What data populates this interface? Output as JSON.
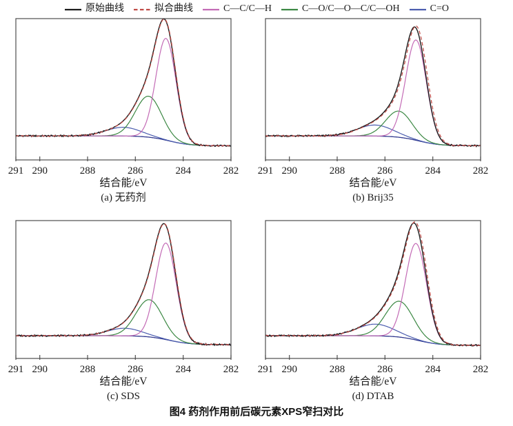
{
  "figure": {
    "caption": "图4 药剂作用前后碳元素XPS窄扫对比"
  },
  "colors": {
    "original": "#1b1b1b",
    "fit": "#c04a45",
    "c_c_h": "#c36ab5",
    "c_o_family": "#3a8742",
    "c_double_o": "#4a5cae",
    "background_line": "#31398f",
    "frame": "#4d4d4d",
    "text": "#1a1a1a"
  },
  "legend": {
    "items": [
      {
        "label": "原始曲线",
        "color_key": "original",
        "dash": "solid"
      },
      {
        "label": "拟合曲线",
        "color_key": "fit",
        "dash": "dashed"
      },
      {
        "label": "C—C/C—H",
        "color_key": "c_c_h",
        "dash": "solid"
      },
      {
        "label": "C—O/C—O—C/C—OH",
        "color_key": "c_o_family",
        "dash": "solid"
      },
      {
        "label": "C=O",
        "color_key": "c_double_o",
        "dash": "solid"
      }
    ]
  },
  "chart_data": [
    {
      "type": "line",
      "id": "a",
      "subtitle": "(a) 无药剂",
      "xlabel": "结合能/eV",
      "x_range": [
        291,
        282
      ],
      "x_ticks": [
        291,
        290,
        288,
        286,
        284,
        282
      ],
      "ylabel": "",
      "grid": false,
      "baseline": {
        "left": 0.17,
        "right": 0.1,
        "step_center": 284.6,
        "step_width": 0.45
      },
      "series_note": "total = background + sum of component Gaussians; heights normalized to plot-box height",
      "peaks": [
        {
          "name": "C—C/C—H",
          "color_key": "c_c_h",
          "center": 284.72,
          "height": 0.72,
          "sigma": 0.42
        },
        {
          "name": "C—O/C—O—C/C—OH",
          "color_key": "c_o_family",
          "center": 285.45,
          "height": 0.29,
          "sigma": 0.55
        },
        {
          "name": "C=O",
          "color_key": "c_double_o",
          "center": 286.5,
          "height": 0.062,
          "sigma": 0.72
        }
      ],
      "fit_offset_ev": 0.015,
      "fit_scale": 1.0
    },
    {
      "type": "line",
      "id": "b",
      "subtitle": "(b) Brij35",
      "xlabel": "结合能/eV",
      "x_range": [
        291,
        282
      ],
      "x_ticks": [
        291,
        290,
        288,
        286,
        284,
        282
      ],
      "ylabel": "",
      "grid": false,
      "baseline": {
        "left": 0.17,
        "right": 0.1,
        "step_center": 284.6,
        "step_width": 0.45
      },
      "series_note": "total = background + sum of component Gaussians; heights normalized to plot-box height",
      "peaks": [
        {
          "name": "C—C/C—H",
          "color_key": "c_c_h",
          "center": 284.7,
          "height": 0.71,
          "sigma": 0.43
        },
        {
          "name": "C—O/C—O—C/C—OH",
          "color_key": "c_o_family",
          "center": 285.42,
          "height": 0.185,
          "sigma": 0.55
        },
        {
          "name": "C=O",
          "color_key": "c_double_o",
          "center": 286.42,
          "height": 0.078,
          "sigma": 0.75
        }
      ],
      "fit_offset_ev": 0.06,
      "fit_scale": 1.012
    },
    {
      "type": "line",
      "id": "c",
      "subtitle": "(c) SDS",
      "xlabel": "结合能/eV",
      "x_range": [
        291,
        282
      ],
      "x_ticks": [
        291,
        290,
        288,
        286,
        284,
        282
      ],
      "ylabel": "",
      "grid": false,
      "baseline": {
        "left": 0.165,
        "right": 0.1,
        "step_center": 284.6,
        "step_width": 0.45
      },
      "series_note": "total = background + sum of component Gaussians; heights normalized to plot-box height",
      "peaks": [
        {
          "name": "C—C/C—H",
          "color_key": "c_c_h",
          "center": 284.72,
          "height": 0.7,
          "sigma": 0.43
        },
        {
          "name": "C—O/C—O—C/C—OH",
          "color_key": "c_o_family",
          "center": 285.42,
          "height": 0.27,
          "sigma": 0.56
        },
        {
          "name": "C=O",
          "color_key": "c_double_o",
          "center": 286.45,
          "height": 0.055,
          "sigma": 0.72
        }
      ],
      "fit_offset_ev": 0.015,
      "fit_scale": 1.0
    },
    {
      "type": "line",
      "id": "d",
      "subtitle": "(d) DTAB",
      "xlabel": "结合能/eV",
      "x_range": [
        291,
        282
      ],
      "x_ticks": [
        291,
        290,
        288,
        286,
        284,
        282
      ],
      "ylabel": "",
      "grid": false,
      "baseline": {
        "left": 0.165,
        "right": 0.095,
        "step_center": 284.6,
        "step_width": 0.45
      },
      "series_note": "total = background + sum of component Gaussians; heights normalized to plot-box height",
      "peaks": [
        {
          "name": "C—C/C—H",
          "color_key": "c_c_h",
          "center": 284.7,
          "height": 0.7,
          "sigma": 0.44
        },
        {
          "name": "C—O/C—O—C/C—OH",
          "color_key": "c_o_family",
          "center": 285.4,
          "height": 0.26,
          "sigma": 0.58
        },
        {
          "name": "C=O",
          "color_key": "c_double_o",
          "center": 286.4,
          "height": 0.085,
          "sigma": 0.78
        }
      ],
      "fit_offset_ev": 0.045,
      "fit_scale": 1.012
    }
  ]
}
